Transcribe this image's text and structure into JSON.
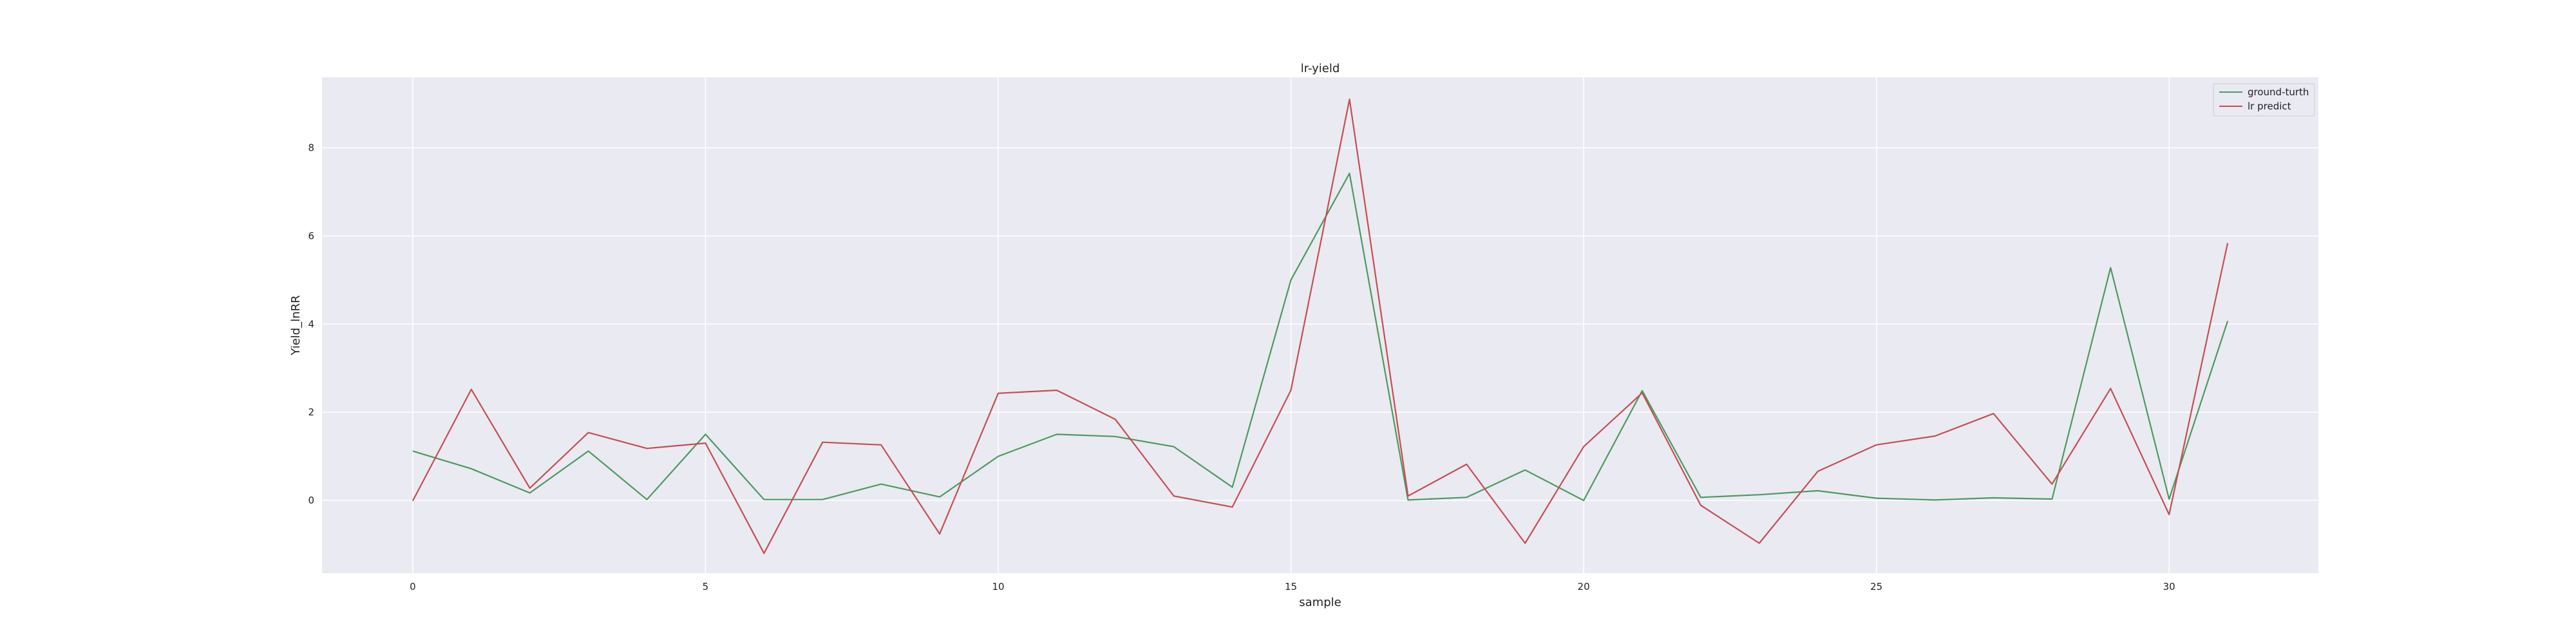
{
  "chart_data": {
    "type": "line",
    "title": "lr-yield",
    "xlabel": "sample",
    "ylabel": "Yield_lnRR",
    "x": [
      0,
      1,
      2,
      3,
      4,
      5,
      6,
      7,
      8,
      9,
      10,
      11,
      12,
      13,
      14,
      15,
      16,
      17,
      18,
      19,
      20,
      21,
      22,
      23,
      24,
      25,
      26,
      27,
      28,
      29,
      30,
      31
    ],
    "xlim": [
      -1.55,
      32.55
    ],
    "ylim": [
      -1.65,
      9.6
    ],
    "xticks": [
      0,
      5,
      10,
      15,
      20,
      25,
      30
    ],
    "yticks": [
      0,
      2,
      4,
      6,
      8
    ],
    "grid": true,
    "legend_position": "upper right",
    "background_color": "#eaeaf2",
    "grid_color": "#ffffff",
    "series": [
      {
        "name": "ground-turth",
        "color": "#4c9a5e",
        "values": [
          1.12,
          0.72,
          0.17,
          1.12,
          0.02,
          1.5,
          0.02,
          0.02,
          0.37,
          0.08,
          1.0,
          1.5,
          1.45,
          1.22,
          0.3,
          5.0,
          7.42,
          0.01,
          0.07,
          0.69,
          0.0,
          2.49,
          0.07,
          0.13,
          0.22,
          0.05,
          0.01,
          0.06,
          0.03,
          5.28,
          0.03,
          4.07
        ]
      },
      {
        "name": "lr predict",
        "color": "#c44e52",
        "values": [
          -0.01,
          2.52,
          0.28,
          1.54,
          1.18,
          1.3,
          -1.2,
          1.32,
          1.26,
          -0.76,
          2.43,
          2.5,
          1.84,
          0.1,
          -0.15,
          2.5,
          9.1,
          0.1,
          0.82,
          -0.97,
          1.22,
          2.44,
          -0.11,
          -0.97,
          0.66,
          1.26,
          1.46,
          1.97,
          0.37,
          2.54,
          -0.32,
          5.84
        ]
      }
    ]
  }
}
